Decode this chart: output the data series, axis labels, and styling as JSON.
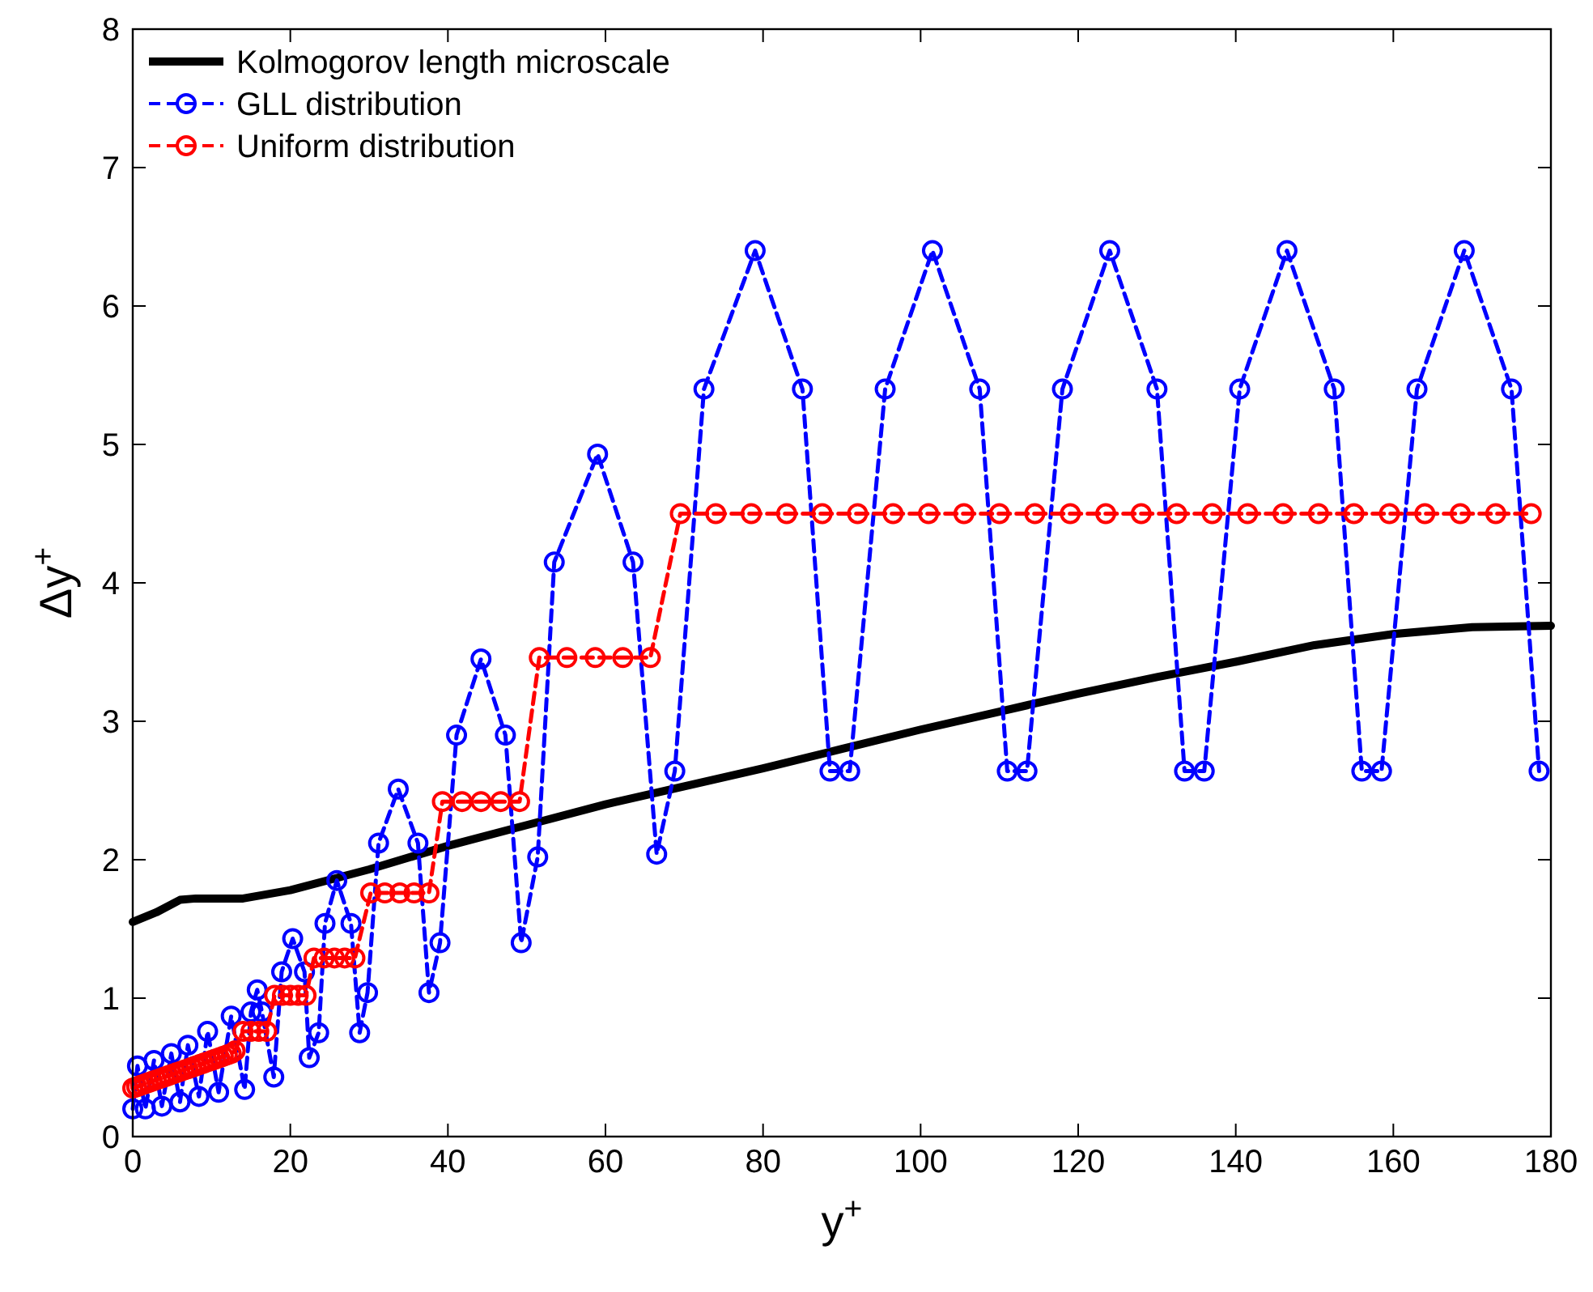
{
  "chart_data": {
    "type": "line",
    "xlabel": "y$^{+}$",
    "ylabel": "Δy$^{+}$",
    "xlim": [
      0,
      180
    ],
    "xticks": [
      0,
      20,
      40,
      60,
      80,
      100,
      120,
      140,
      160,
      180
    ],
    "ylim": [
      0,
      8
    ],
    "yticks": [
      0,
      1,
      2,
      3,
      4,
      5,
      6,
      7,
      8
    ],
    "grid": false,
    "legend": "top left",
    "series": [
      {
        "name": "Kolmogorov length microscale",
        "color": "#000000",
        "marker": "none",
        "line_style": "solid",
        "x": [
          0,
          3,
          6,
          8,
          14,
          20,
          30,
          40,
          50,
          60,
          70,
          80,
          90,
          100,
          110,
          120,
          130,
          140,
          150,
          160,
          170,
          180
        ],
        "values": [
          1.55,
          1.62,
          1.71,
          1.72,
          1.72,
          1.78,
          1.93,
          2.1,
          2.25,
          2.4,
          2.53,
          2.66,
          2.8,
          2.94,
          3.07,
          3.2,
          3.32,
          3.43,
          3.55,
          3.63,
          3.68,
          3.69
        ]
      },
      {
        "name": "GLL distribution",
        "color": "#0000ff",
        "marker": "circle",
        "line_style": "dashed",
        "x": [
          0,
          0.6,
          1.6,
          2.7,
          3.7,
          4.9,
          6,
          7,
          8.4,
          9.5,
          10.9,
          12.5,
          14.2,
          15,
          15.8,
          16.4,
          17.9,
          18.9,
          20.3,
          21.8,
          22.4,
          23.6,
          24.4,
          25.9,
          27.7,
          28.8,
          29.8,
          31.2,
          33.7,
          36.2,
          37.6,
          39,
          41.1,
          44.2,
          47.3,
          49.3,
          51.4,
          53.5,
          59,
          63.5,
          66.5,
          68.8,
          72.5,
          79,
          85,
          88.5,
          91,
          95.5,
          101.5,
          107.5,
          111,
          113.5,
          118,
          124,
          130,
          133.5,
          136,
          140.5,
          146.5,
          152.5,
          156,
          158.5,
          163,
          169,
          175,
          178.5
        ],
        "values": [
          0.2,
          0.51,
          0.2,
          0.55,
          0.22,
          0.6,
          0.25,
          0.66,
          0.29,
          0.76,
          0.32,
          0.87,
          0.34,
          0.9,
          1.06,
          0.9,
          0.43,
          1.19,
          1.43,
          1.19,
          0.57,
          0.75,
          1.54,
          1.85,
          1.54,
          0.75,
          1.04,
          2.12,
          2.51,
          2.12,
          1.04,
          1.4,
          2.9,
          3.45,
          2.9,
          1.4,
          2.02,
          4.15,
          4.93,
          4.15,
          2.04,
          2.64,
          5.4,
          6.4,
          5.4,
          2.64,
          2.64,
          5.4,
          6.4,
          5.4,
          2.64,
          2.64,
          5.4,
          6.4,
          5.4,
          2.64,
          2.64,
          5.4,
          6.4,
          5.4,
          2.64,
          2.64,
          5.4,
          6.4,
          5.4,
          2.64
        ]
      },
      {
        "name": "Uniform distribution",
        "color": "#ff0000",
        "marker": "circle",
        "line_style": "dashed",
        "x": [
          0,
          0.5,
          1,
          1.5,
          2,
          2.5,
          3,
          3.5,
          4,
          4.5,
          5,
          5.5,
          6,
          6.5,
          7,
          7.5,
          8,
          8.5,
          9,
          9.5,
          10,
          10.5,
          11,
          11.5,
          12,
          12.5,
          13,
          14,
          15,
          16,
          17,
          18,
          19,
          20,
          21,
          22,
          23,
          24.3,
          25.6,
          26.9,
          28.2,
          30.2,
          32,
          33.9,
          35.7,
          37.6,
          39.3,
          41.8,
          44.2,
          46.7,
          49.1,
          51.6,
          55.1,
          58.7,
          62.2,
          65.7,
          69.5,
          74,
          78.5,
          83,
          87.5,
          92,
          96.5,
          101,
          105.5,
          110,
          114.5,
          119,
          123.5,
          128,
          132.5,
          137,
          141.5,
          146,
          150.5,
          155,
          159.5,
          164,
          168.5,
          173,
          177.5
        ],
        "values": [
          0.35,
          0.36,
          0.37,
          0.38,
          0.39,
          0.4,
          0.41,
          0.42,
          0.43,
          0.44,
          0.45,
          0.46,
          0.47,
          0.48,
          0.49,
          0.5,
          0.51,
          0.52,
          0.53,
          0.54,
          0.55,
          0.56,
          0.57,
          0.58,
          0.59,
          0.6,
          0.62,
          0.76,
          0.76,
          0.76,
          0.76,
          1.02,
          1.02,
          1.02,
          1.02,
          1.02,
          1.29,
          1.29,
          1.29,
          1.29,
          1.29,
          1.76,
          1.76,
          1.76,
          1.76,
          1.76,
          2.42,
          2.42,
          2.42,
          2.42,
          2.42,
          3.46,
          3.46,
          3.46,
          3.46,
          3.46,
          4.5,
          4.5,
          4.5,
          4.5,
          4.5,
          4.5,
          4.5,
          4.5,
          4.5,
          4.5,
          4.5,
          4.5,
          4.5,
          4.5,
          4.5,
          4.5,
          4.5,
          4.5,
          4.5,
          4.5,
          4.5,
          4.5,
          4.5,
          4.5,
          4.5
        ]
      }
    ]
  }
}
